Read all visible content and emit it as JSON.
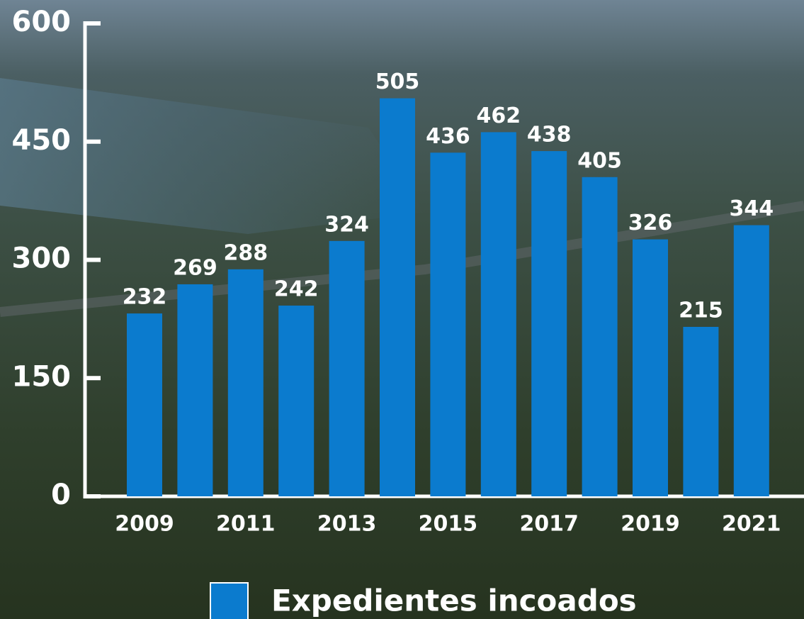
{
  "chart_data": {
    "type": "bar",
    "categories": [
      "2009",
      null,
      "2011",
      null,
      "2013",
      null,
      "2015",
      null,
      "2017",
      null,
      "2019",
      null,
      "2021"
    ],
    "series": [
      {
        "name": "Expedientes incoados",
        "color": "#0b7bce",
        "values": [
          232,
          269,
          288,
          242,
          324,
          505,
          436,
          462,
          438,
          405,
          326,
          215,
          344
        ]
      }
    ],
    "ylim": [
      0,
      600
    ],
    "yticks": [
      0,
      150,
      300,
      450,
      600
    ],
    "legend": "bottom"
  }
}
